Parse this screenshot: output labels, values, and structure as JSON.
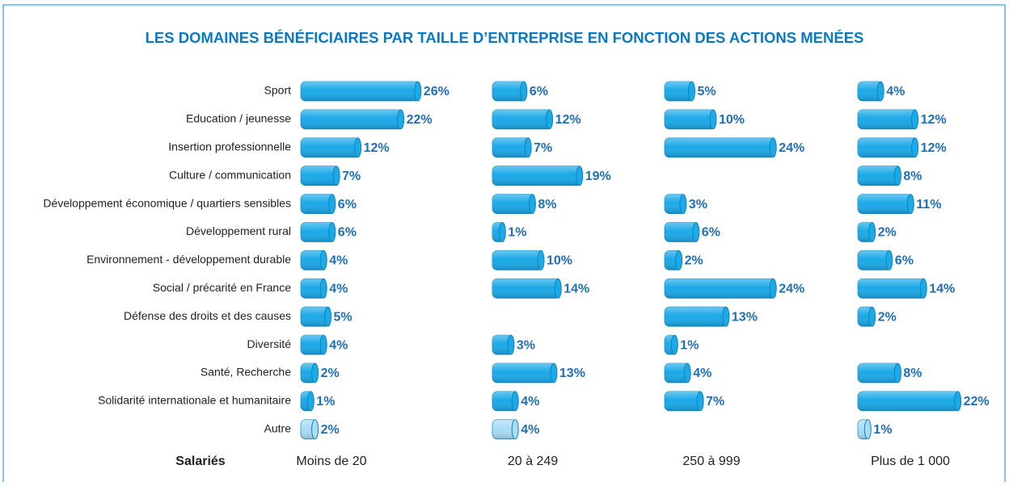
{
  "chart_data": {
    "type": "bar",
    "orientation": "horizontal",
    "title": "LES DOMAINES BÉNÉFICIAIRES PAR TAILLE D’ENTREPRISE EN FONCTION DES ACTIONS MENÉES",
    "group_label": "Salariés",
    "categories": [
      "Sport",
      "Education / jeunesse",
      "Insertion professionnelle",
      "Culture / communication",
      "Développement économique / quartiers sensibles",
      "Développement rural",
      "Environnement - développement durable",
      "Social / précarité en France",
      "Défense des droits et des causes",
      "Diversité",
      "Santé, Recherche",
      "Solidarité internationale et humanitaire",
      "Autre"
    ],
    "category_colors": [
      "#1ba9e8",
      "#1ba9e8",
      "#1ba9e8",
      "#1ba9e8",
      "#1ba9e8",
      "#1ba9e8",
      "#1ba9e8",
      "#1ba9e8",
      "#1ba9e8",
      "#1ba9e8",
      "#1ba9e8",
      "#1ba9e8",
      "#a9ddf6"
    ],
    "series": [
      {
        "name": "Moins de 20",
        "values": [
          26,
          22,
          12,
          7,
          6,
          6,
          4,
          4,
          5,
          4,
          2,
          1,
          2
        ],
        "value_labels": [
          "26%",
          "22%",
          "12%",
          "7%",
          "6%",
          "6%",
          "4%",
          "4%",
          "5%",
          "4%",
          "2%",
          "1%",
          "2%"
        ]
      },
      {
        "name": "20 à 249",
        "values": [
          6,
          12,
          7,
          19,
          8,
          1,
          10,
          14,
          null,
          3,
          13,
          4,
          4
        ],
        "value_labels": [
          "6%",
          "12%",
          "7%",
          "19%",
          "8%",
          "1%",
          "10%",
          "14%",
          null,
          "3%",
          "13%",
          "4%",
          "4%"
        ]
      },
      {
        "name": "250 à 999",
        "values": [
          5,
          10,
          24,
          null,
          3,
          6,
          2,
          24,
          13,
          1,
          4,
          7,
          null
        ],
        "value_labels": [
          "5%",
          "10%",
          "24%",
          null,
          "3%",
          "6%",
          "2%",
          "24%",
          "13%",
          "1%",
          "4%",
          "7%",
          null
        ]
      },
      {
        "name": "Plus de 1 000",
        "values": [
          4,
          12,
          12,
          8,
          11,
          2,
          6,
          14,
          2,
          null,
          8,
          22,
          1
        ],
        "value_labels": [
          "4%",
          "12%",
          "12%",
          "8%",
          "11%",
          "2%",
          "6%",
          "14%",
          "2%",
          null,
          "8%",
          "22%",
          "1%"
        ]
      }
    ]
  }
}
